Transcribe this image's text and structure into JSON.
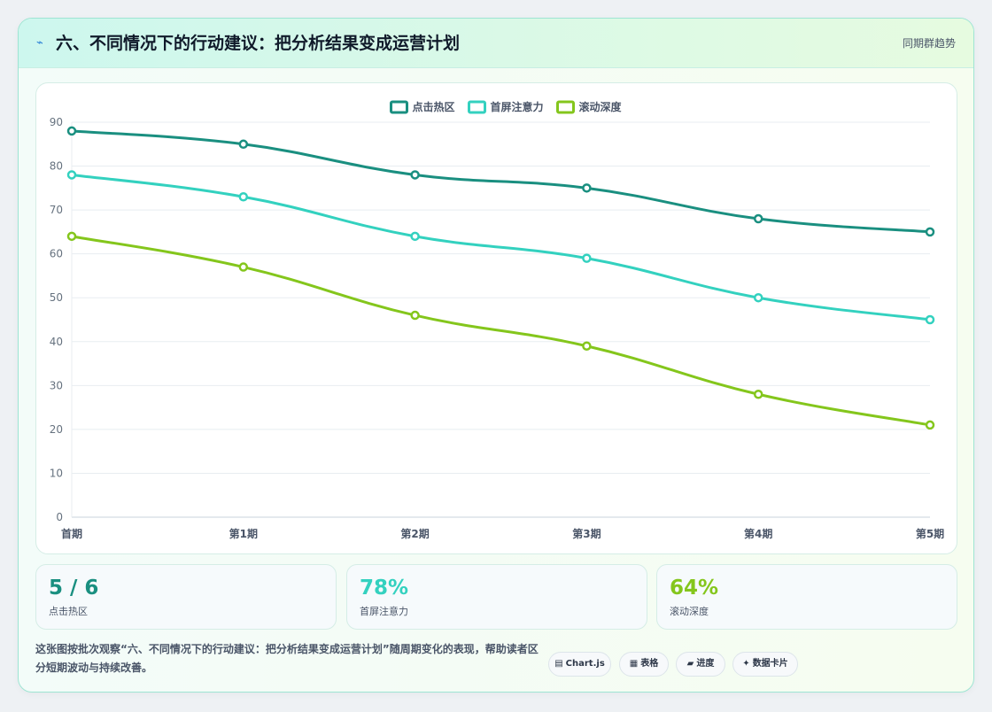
{
  "header": {
    "icon": "spark-icon",
    "title": "六、不同情况下的行动建议：把分析结果变成运营计划",
    "tag": "同期群趋势"
  },
  "chart_data": {
    "type": "line",
    "title": "",
    "xlabel": "",
    "ylabel": "",
    "categories": [
      "首期",
      "第1期",
      "第2期",
      "第3期",
      "第4期",
      "第5期"
    ],
    "ylim": [
      0,
      90
    ],
    "yticks": [
      "0",
      "10",
      "20",
      "30",
      "40",
      "50",
      "60",
      "70",
      "80",
      "90"
    ],
    "grid": true,
    "legend_position": "top",
    "series": [
      {
        "name": "点击热区",
        "color": "#1a8f80",
        "values": [
          88,
          85,
          78,
          75,
          68,
          65
        ]
      },
      {
        "name": "首屏注意力",
        "color": "#33d1bf",
        "values": [
          78,
          73,
          64,
          59,
          50,
          45
        ]
      },
      {
        "name": "滚动深度",
        "color": "#84c61c",
        "values": [
          64,
          57,
          46,
          39,
          28,
          21
        ]
      }
    ]
  },
  "stats": [
    {
      "value": "5 / 6",
      "label": "点击热区",
      "color": "#1a8f80"
    },
    {
      "value": "78%",
      "label": "首屏注意力",
      "color": "#33d1bf"
    },
    {
      "value": "64%",
      "label": "滚动深度",
      "color": "#84c61c"
    }
  ],
  "footer": {
    "description": "这张图按批次观察“六、不同情况下的行动建议：把分析结果变成运营计划”随周期变化的表现，帮助读者区分短期波动与持续改善。",
    "chips": [
      {
        "icon": "chart-icon",
        "glyph": "▤",
        "label": "Chart.js"
      },
      {
        "icon": "table-icon",
        "glyph": "▦",
        "label": "表格"
      },
      {
        "icon": "progress-icon",
        "glyph": "▰",
        "label": "进度"
      },
      {
        "icon": "card-icon",
        "glyph": "✦",
        "label": "数据卡片"
      }
    ]
  }
}
